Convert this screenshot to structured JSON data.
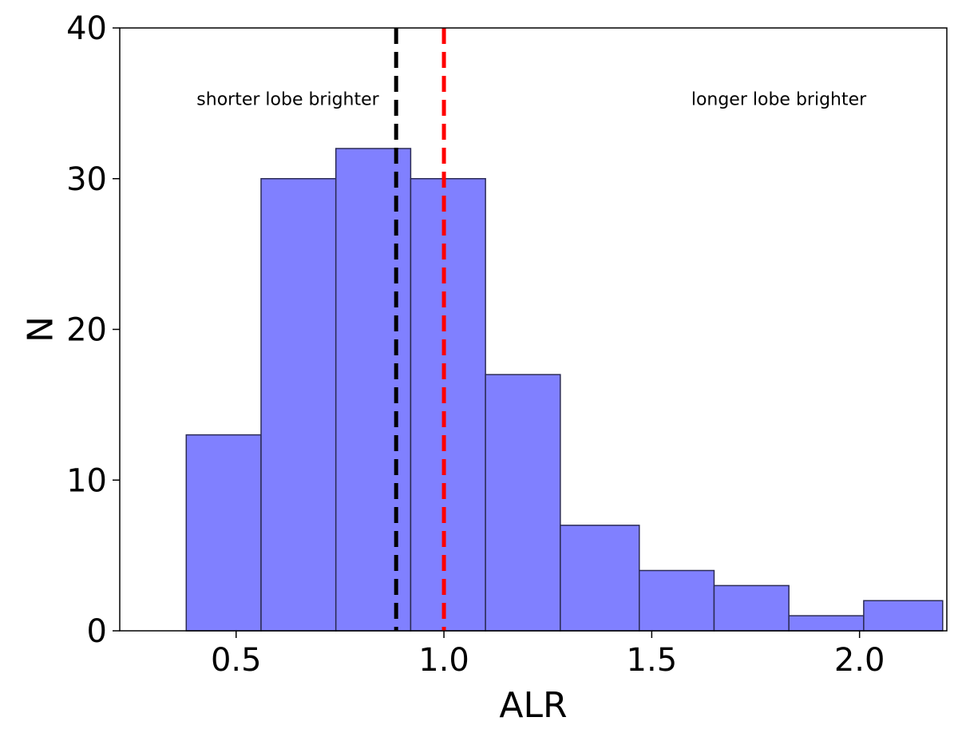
{
  "chart_data": {
    "type": "bar",
    "subtype": "histogram",
    "xlabel": "ALR",
    "ylabel": "N",
    "xlim": [
      0.22,
      2.21
    ],
    "ylim": [
      0,
      40
    ],
    "xticks": [
      0.5,
      1.0,
      1.5,
      2.0
    ],
    "xtick_labels": [
      "0.5",
      "1.0",
      "1.5",
      "2.0"
    ],
    "yticks": [
      0,
      10,
      20,
      30,
      40
    ],
    "ytick_labels": [
      "0",
      "10",
      "20",
      "30",
      "40"
    ],
    "bins": [
      {
        "x0": 0.38,
        "x1": 0.56,
        "count": 13
      },
      {
        "x0": 0.56,
        "x1": 0.74,
        "count": 30
      },
      {
        "x0": 0.74,
        "x1": 0.92,
        "count": 32
      },
      {
        "x0": 0.92,
        "x1": 1.1,
        "count": 30
      },
      {
        "x0": 1.1,
        "x1": 1.28,
        "count": 17
      },
      {
        "x0": 1.28,
        "x1": 1.47,
        "count": 7
      },
      {
        "x0": 1.47,
        "x1": 1.65,
        "count": 4
      },
      {
        "x0": 1.65,
        "x1": 1.83,
        "count": 3
      },
      {
        "x0": 1.83,
        "x1": 2.01,
        "count": 1
      },
      {
        "x0": 2.01,
        "x1": 2.2,
        "count": 2
      }
    ],
    "bar_color": "#8080ff",
    "bar_edge_color": "#2b2b55",
    "vlines": [
      {
        "x": 0.885,
        "color": "#000000",
        "style": "dashed"
      },
      {
        "x": 1.0,
        "color": "#ff0000",
        "style": "dashed"
      }
    ],
    "annotations": [
      {
        "text": "shorter lobe brighter",
        "x": 0.405,
        "y": 35.3
      },
      {
        "text": "longer lobe brighter",
        "x": 1.595,
        "y": 35.3
      }
    ],
    "grid": false,
    "legend": "none"
  }
}
